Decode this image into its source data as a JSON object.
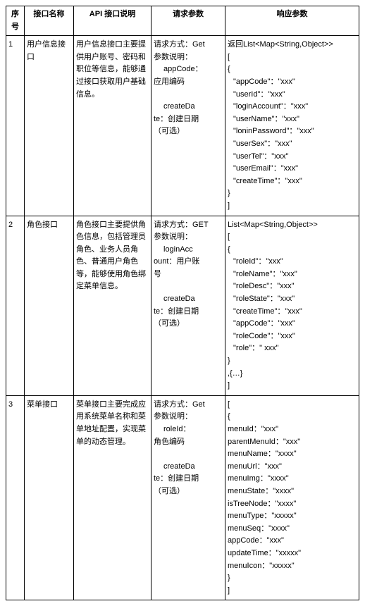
{
  "headers": {
    "seq": "序号",
    "name": "接口名称",
    "desc": "API 接口说明",
    "req": "请求参数",
    "resp": "响应参数"
  },
  "rows": [
    {
      "seq": "1",
      "name": "用户信息接口",
      "desc": "用户信息接口主要提供用户账号、密码和职位等信息，能够通过接口获取用户基础信息。",
      "req": {
        "l1": "请求方式：Get",
        "l2": "参数说明：",
        "p1a": "appCode：",
        "p1b": "应用编码",
        "p2a": "createDa",
        "p2b": "te：创建日期",
        "p2c": "（可选）"
      },
      "resp": {
        "l0": "返回List<Map<String,Object>>",
        "l1": "[",
        "l2": "{",
        "f1": "\"appCode\"：\"xxx\"",
        "f2": "\"userId\"：\"xxx\"",
        "f3": "\"loginAccount\"：\"xxx\"",
        "f4": "\"userName\"：\"xxx\"",
        "f5": "\"loninPassword\"：\"xxx\"",
        "f6": "\"userSex\"：\"xxx\"",
        "f7": "\"userTel\"：\"xxx\"",
        "f8": "\"userEmail\"：\"xxx\"",
        "f9": "\"createTime\"：\"xxx\"",
        "l3": "}",
        "l4": "]"
      }
    },
    {
      "seq": "2",
      "name": "角色接口",
      "desc": "角色接口主要提供角色信息，包括管理员角色、业务人员角色、普通用户角色等，能够使用角色绑定菜单信息。",
      "req": {
        "l1": "请求方式：GET",
        "l2": "参数说明：",
        "p1a": "loginAcc",
        "p1b": "ount：用户账",
        "p1c": "号",
        "p2a": "createDa",
        "p2b": "te：创建日期",
        "p2c": "（可选）"
      },
      "resp": {
        "l0": "List<Map<String,Object>>",
        "l1": "[",
        "l2": "{",
        "f1": "\"roleId\"：\"xxx\"",
        "f2": "\"roleName\"：\"xxx\"",
        "f3": "\"roleDesc\"：\"xxx\"",
        "f4": "\"roleState\"：\"xxx\"",
        "f5": "\"createTime\"：\"xxx\"",
        "f6": "\"appCode\"：\"xxx\"",
        "f7": "\"roleCode\"：\"xxx\"",
        "f8": "\"role\"：\" xxx\"",
        "l3": "}",
        "l4": ",{…}",
        "l5": "]"
      }
    },
    {
      "seq": "3",
      "name": "菜单接口",
      "desc": "菜单接口主要完成应用系统菜单名称和菜单地址配置，实现菜单的动态管理。",
      "req": {
        "l1": "请求方式：Get",
        "l2": "参数说明：",
        "p1a": "roleId：",
        "p1b": "角色编码",
        "p2a": "createDa",
        "p2b": "te：创建日期",
        "p2c": "（可选）"
      },
      "resp": {
        "l0": "[",
        "l1": "{",
        "f1": "menuId：\"xxx\"",
        "f2": "parentMenuId：\"xxx\"",
        "f3": "menuName：\"xxxx\"",
        "f4": "menuUrl：\"xxx\"",
        "f5": "menuImg：\"xxxx\"",
        "f6": "menuState：\"xxxx\"",
        "f7": "isTreeNode：\"xxxx\"",
        "f8": "menuType：\"xxxxx\"",
        "f9": "menuSeq：\"xxxx\"",
        "f10": "appCode：\"xxx\"",
        "f11": "updateTime：\"xxxxx\"",
        "f12": "menuIcon：\"xxxxx\"",
        "l2": "}",
        "l3": "]"
      }
    }
  ]
}
